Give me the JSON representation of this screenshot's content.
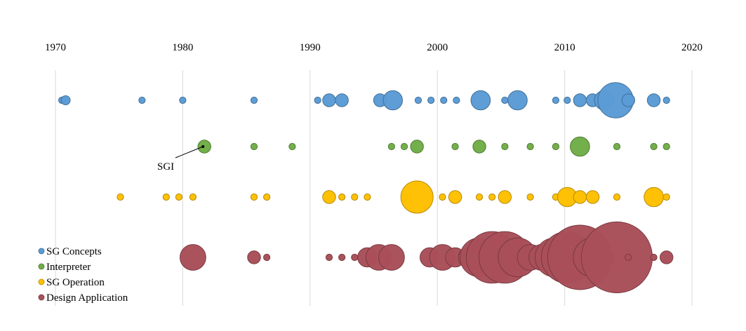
{
  "chart_data": {
    "type": "scatter",
    "title": "",
    "xlabel": "",
    "ylabel": "",
    "xlim": [
      1970,
      2020
    ],
    "x_ticks": [
      1970,
      1980,
      1990,
      2000,
      2010,
      2020
    ],
    "x_tick_labels": [
      "1970",
      "1980",
      "1990",
      "2000",
      "2010",
      "2020"
    ],
    "grid": "vertical",
    "legend_position": "bottom-left",
    "series": [
      {
        "name": "SG Concepts",
        "color": "#5B9BD5",
        "points": [
          {
            "x": 1970.5,
            "size": 1
          },
          {
            "x": 1970.8,
            "size": 2
          },
          {
            "x": 1976.8,
            "size": 1
          },
          {
            "x": 1980,
            "size": 1
          },
          {
            "x": 1985.6,
            "size": 1
          },
          {
            "x": 1990.6,
            "size": 1
          },
          {
            "x": 1991.5,
            "size": 4
          },
          {
            "x": 1992.5,
            "size": 4
          },
          {
            "x": 1995.5,
            "size": 4
          },
          {
            "x": 1996.5,
            "size": 9
          },
          {
            "x": 1998.5,
            "size": 1
          },
          {
            "x": 1999.5,
            "size": 1
          },
          {
            "x": 2000.5,
            "size": 1
          },
          {
            "x": 2001.5,
            "size": 1
          },
          {
            "x": 2003.4,
            "size": 9
          },
          {
            "x": 2005.3,
            "size": 1
          },
          {
            "x": 2006.3,
            "size": 9
          },
          {
            "x": 2009.3,
            "size": 1
          },
          {
            "x": 2010.2,
            "size": 1
          },
          {
            "x": 2011.2,
            "size": 4
          },
          {
            "x": 2012.2,
            "size": 4
          },
          {
            "x": 2013.1,
            "size": 9
          },
          {
            "x": 2014,
            "size": 30
          },
          {
            "x": 2015,
            "size": 4
          },
          {
            "x": 2017,
            "size": 4
          },
          {
            "x": 2018,
            "size": 1
          }
        ]
      },
      {
        "name": "Interpreter",
        "color": "#70AD47",
        "points": [
          {
            "x": 1981.7,
            "size": 4
          },
          {
            "x": 1985.6,
            "size": 1
          },
          {
            "x": 1988.6,
            "size": 1
          },
          {
            "x": 1996.4,
            "size": 1
          },
          {
            "x": 1997.4,
            "size": 1
          },
          {
            "x": 1998.4,
            "size": 4
          },
          {
            "x": 2001.4,
            "size": 1
          },
          {
            "x": 2003.3,
            "size": 4
          },
          {
            "x": 2005.3,
            "size": 1
          },
          {
            "x": 2007.3,
            "size": 1
          },
          {
            "x": 2009.3,
            "size": 1
          },
          {
            "x": 2011.2,
            "size": 9
          },
          {
            "x": 2014.1,
            "size": 1
          },
          {
            "x": 2017,
            "size": 1
          },
          {
            "x": 2018,
            "size": 1
          }
        ]
      },
      {
        "name": "SG Operation",
        "color": "#FFC000",
        "points": [
          {
            "x": 1975.1,
            "size": 1
          },
          {
            "x": 1978.7,
            "size": 1
          },
          {
            "x": 1979.7,
            "size": 1
          },
          {
            "x": 1980.8,
            "size": 1
          },
          {
            "x": 1985.6,
            "size": 1
          },
          {
            "x": 1986.6,
            "size": 1
          },
          {
            "x": 1991.5,
            "size": 4
          },
          {
            "x": 1992.5,
            "size": 1
          },
          {
            "x": 1993.5,
            "size": 1
          },
          {
            "x": 1994.5,
            "size": 1
          },
          {
            "x": 1997.5,
            "size": 1
          },
          {
            "x": 1998.4,
            "size": 25
          },
          {
            "x": 2000.4,
            "size": 1
          },
          {
            "x": 2001.4,
            "size": 4
          },
          {
            "x": 2003.3,
            "size": 1
          },
          {
            "x": 2004.3,
            "size": 1
          },
          {
            "x": 2005.3,
            "size": 4
          },
          {
            "x": 2007.3,
            "size": 1
          },
          {
            "x": 2009.3,
            "size": 1
          },
          {
            "x": 2010.2,
            "size": 9
          },
          {
            "x": 2011.2,
            "size": 4
          },
          {
            "x": 2012.2,
            "size": 4
          },
          {
            "x": 2014.1,
            "size": 1
          },
          {
            "x": 2017,
            "size": 9
          },
          {
            "x": 2018,
            "size": 1
          }
        ]
      },
      {
        "name": "Design Application",
        "color": "#A9505A",
        "points": [
          {
            "x": 1980.8,
            "size": 16
          },
          {
            "x": 1985.6,
            "size": 4
          },
          {
            "x": 1986.6,
            "size": 1
          },
          {
            "x": 1991.5,
            "size": 1
          },
          {
            "x": 1992.5,
            "size": 1
          },
          {
            "x": 1993.5,
            "size": 1
          },
          {
            "x": 1994.5,
            "size": 9
          },
          {
            "x": 1995.4,
            "size": 16
          },
          {
            "x": 1996.4,
            "size": 16
          },
          {
            "x": 1999.4,
            "size": 9
          },
          {
            "x": 2000.4,
            "size": 16
          },
          {
            "x": 2001.4,
            "size": 9
          },
          {
            "x": 2002.4,
            "size": 9
          },
          {
            "x": 2003.3,
            "size": 36
          },
          {
            "x": 2004.3,
            "size": 64
          },
          {
            "x": 2005.3,
            "size": 64
          },
          {
            "x": 2006.3,
            "size": 36
          },
          {
            "x": 2007.3,
            "size": 16
          },
          {
            "x": 2008.2,
            "size": 16
          },
          {
            "x": 2009.2,
            "size": 36
          },
          {
            "x": 2010.2,
            "size": 64
          },
          {
            "x": 2011.2,
            "size": 100
          },
          {
            "x": 2012.2,
            "size": 36
          },
          {
            "x": 2013.1,
            "size": 9
          },
          {
            "x": 2014.1,
            "size": 121
          },
          {
            "x": 2015,
            "size": 1
          },
          {
            "x": 2017,
            "size": 1
          },
          {
            "x": 2018,
            "size": 4
          }
        ]
      }
    ],
    "annotations": [
      {
        "text": "SGI",
        "series": "Interpreter",
        "x": 1981.7
      }
    ]
  }
}
